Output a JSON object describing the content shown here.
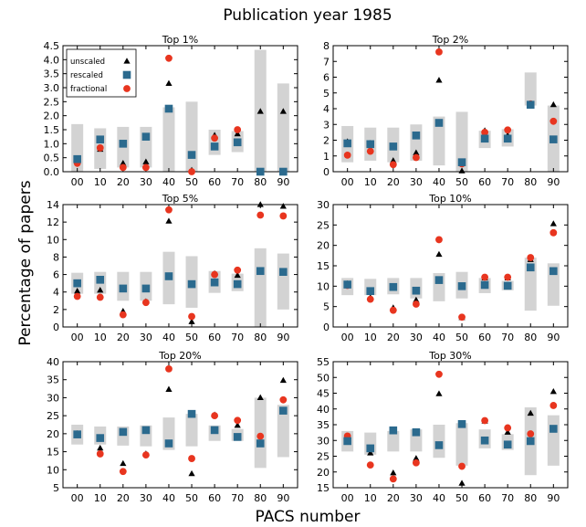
{
  "figure": {
    "title": "Publication year 1985",
    "xlabel": "PACS number",
    "ylabel": "Percentage of papers"
  },
  "legend": {
    "entries": [
      {
        "label": "unscaled",
        "marker": "triangle",
        "color": "#000000"
      },
      {
        "label": "rescaled",
        "marker": "square",
        "color": "#2b6a8e"
      },
      {
        "label": "fractional",
        "marker": "circle",
        "color": "#e8351f"
      }
    ]
  },
  "colors": {
    "band": "#d3d3d3",
    "unscaled": "#000000",
    "rescaled": "#2b6a8e",
    "fractional": "#e8351f"
  },
  "chart_data": [
    {
      "type": "scatter",
      "title": "Top 1%",
      "categories": [
        "00",
        "10",
        "20",
        "30",
        "40",
        "50",
        "60",
        "70",
        "80",
        "90"
      ],
      "ylim": [
        0,
        4.5
      ],
      "yticks": [
        "0.0",
        "0.5",
        "1.0",
        "1.5",
        "2.0",
        "2.5",
        "3.0",
        "3.5",
        "4.0",
        "4.5"
      ],
      "band_low": [
        0,
        0.1,
        0.15,
        0.15,
        0,
        0,
        0.6,
        0.7,
        0,
        0
      ],
      "band_high": [
        1.7,
        1.55,
        1.6,
        1.6,
        2.3,
        2.5,
        1.5,
        1.45,
        4.35,
        3.15
      ],
      "series": [
        {
          "name": "unscaled",
          "values": [
            0.45,
            0.8,
            0.3,
            0.35,
            3.15,
            0.05,
            1.3,
            1.35,
            2.15,
            2.15
          ]
        },
        {
          "name": "rescaled",
          "values": [
            0.45,
            1.15,
            1.0,
            1.25,
            2.25,
            0.6,
            0.9,
            1.05,
            0.0,
            0.0
          ]
        },
        {
          "name": "fractional",
          "values": [
            0.3,
            0.85,
            0.15,
            0.15,
            4.05,
            0.0,
            1.2,
            1.5,
            0.0,
            0.0
          ]
        }
      ],
      "legend": "top-left"
    },
    {
      "type": "scatter",
      "title": "Top 2%",
      "categories": [
        "00",
        "10",
        "20",
        "30",
        "40",
        "50",
        "60",
        "70",
        "80",
        "90"
      ],
      "ylim": [
        0,
        8
      ],
      "yticks": [
        "0",
        "1",
        "2",
        "3",
        "4",
        "5",
        "6",
        "7",
        "8"
      ],
      "band_low": [
        0.6,
        0.7,
        0.6,
        0.7,
        0.4,
        0,
        1.5,
        1.6,
        4.2,
        0
      ],
      "band_high": [
        2.9,
        2.8,
        2.8,
        3.0,
        3.5,
        3.8,
        2.6,
        2.7,
        6.3,
        4.2
      ],
      "series": [
        {
          "name": "unscaled",
          "values": [
            1.9,
            1.8,
            0.7,
            1.2,
            5.8,
            0.05,
            2.6,
            2.3,
            4.3,
            4.25
          ]
        },
        {
          "name": "rescaled",
          "values": [
            1.8,
            1.75,
            1.6,
            2.3,
            3.1,
            0.6,
            2.1,
            2.1,
            4.25,
            2.05
          ]
        },
        {
          "name": "fractional",
          "values": [
            1.05,
            1.3,
            0.45,
            0.9,
            7.6,
            0.5,
            2.5,
            2.65,
            4.3,
            3.2
          ]
        }
      ]
    },
    {
      "type": "scatter",
      "title": "Top 5%",
      "categories": [
        "00",
        "10",
        "20",
        "30",
        "40",
        "50",
        "60",
        "70",
        "80",
        "90"
      ],
      "ylim": [
        0,
        14
      ],
      "yticks": [
        "0",
        "2",
        "4",
        "6",
        "8",
        "10",
        "12",
        "14"
      ],
      "band_low": [
        3.8,
        3.8,
        3.0,
        3.0,
        2.6,
        2.2,
        3.9,
        4.1,
        0,
        2.0
      ],
      "band_high": [
        6.2,
        6.3,
        6.3,
        6.3,
        8.6,
        8.1,
        6.4,
        6.1,
        9.0,
        8.4
      ],
      "series": [
        {
          "name": "unscaled",
          "values": [
            4.1,
            4.2,
            1.8,
            2.9,
            12.1,
            0.6,
            6.1,
            5.9,
            14.7,
            13.8
          ]
        },
        {
          "name": "rescaled",
          "values": [
            5.0,
            5.4,
            4.4,
            4.4,
            5.8,
            4.9,
            5.1,
            4.9,
            6.4,
            6.3
          ]
        },
        {
          "name": "fractional",
          "values": [
            3.5,
            3.4,
            1.4,
            2.8,
            13.4,
            1.2,
            6.0,
            6.5,
            12.8,
            12.7
          ]
        }
      ]
    },
    {
      "type": "scatter",
      "title": "Top 10%",
      "categories": [
        "00",
        "10",
        "20",
        "30",
        "40",
        "50",
        "60",
        "70",
        "80",
        "90"
      ],
      "ylim": [
        0,
        30
      ],
      "yticks": [
        "0",
        "5",
        "10",
        "15",
        "20",
        "25",
        "30"
      ],
      "band_low": [
        7.8,
        7.8,
        8.0,
        7.0,
        6.3,
        7.0,
        8.3,
        9.0,
        4.0,
        5.2
      ],
      "band_high": [
        12.0,
        11.8,
        12.0,
        12.0,
        13.2,
        13.5,
        12.0,
        11.3,
        17.0,
        15.6
      ],
      "series": [
        {
          "name": "unscaled",
          "values": [
            10.6,
            7.2,
            4.7,
            6.6,
            17.8,
            2.3,
            12.0,
            12.0,
            16.5,
            25.3
          ]
        },
        {
          "name": "rescaled",
          "values": [
            10.4,
            8.8,
            9.8,
            8.9,
            11.5,
            10.0,
            10.3,
            10.1,
            14.6,
            13.7
          ]
        },
        {
          "name": "fractional",
          "values": [
            10.2,
            6.8,
            4.1,
            5.6,
            21.4,
            2.4,
            12.2,
            12.2,
            17.0,
            23.1
          ]
        }
      ]
    },
    {
      "type": "scatter",
      "title": "Top 20%",
      "categories": [
        "00",
        "10",
        "20",
        "30",
        "40",
        "50",
        "60",
        "70",
        "80",
        "90"
      ],
      "ylim": [
        5,
        40
      ],
      "yticks": [
        "5",
        "10",
        "15",
        "20",
        "25",
        "30",
        "35",
        "40"
      ],
      "band_low": [
        17.0,
        17.0,
        16.7,
        16.5,
        15.5,
        16.5,
        18.0,
        18.0,
        10.5,
        13.5
      ],
      "band_high": [
        22.5,
        22.0,
        22.0,
        22.3,
        24.5,
        25.5,
        22.3,
        21.3,
        30.0,
        28.0
      ],
      "series": [
        {
          "name": "unscaled",
          "values": [
            20.0,
            16.0,
            11.7,
            14.4,
            32.3,
            8.9,
            25.2,
            22.3,
            30.0,
            34.8
          ]
        },
        {
          "name": "rescaled",
          "values": [
            19.8,
            18.8,
            20.5,
            21.0,
            17.3,
            25.5,
            21.0,
            19.1,
            17.3,
            26.4
          ]
        },
        {
          "name": "fractional",
          "values": [
            19.9,
            14.4,
            9.5,
            14.1,
            38.0,
            13.1,
            25.0,
            23.7,
            19.3,
            29.4
          ]
        }
      ]
    },
    {
      "type": "scatter",
      "title": "Top 30%",
      "categories": [
        "00",
        "10",
        "20",
        "30",
        "40",
        "50",
        "60",
        "70",
        "80",
        "90"
      ],
      "ylim": [
        15,
        55
      ],
      "yticks": [
        "15",
        "20",
        "25",
        "30",
        "35",
        "40",
        "45",
        "50",
        "55"
      ],
      "band_low": [
        26.5,
        25.5,
        26.5,
        26.5,
        24.5,
        22.0,
        27.5,
        27.0,
        19.0,
        22.0
      ],
      "band_high": [
        33.0,
        32.5,
        33.0,
        33.5,
        35.0,
        35.5,
        33.5,
        32.0,
        40.5,
        38.0
      ],
      "series": [
        {
          "name": "unscaled",
          "values": [
            30.5,
            26.0,
            19.7,
            24.3,
            44.8,
            16.4,
            36.1,
            32.6,
            38.6,
            45.5
          ]
        },
        {
          "name": "rescaled",
          "values": [
            29.8,
            27.5,
            33.2,
            32.6,
            28.5,
            35.2,
            30.0,
            28.7,
            29.8,
            33.7
          ]
        },
        {
          "name": "fractional",
          "values": [
            31.4,
            22.2,
            17.8,
            22.9,
            51.0,
            21.8,
            36.3,
            34.0,
            32.1,
            41.1
          ]
        }
      ]
    }
  ]
}
